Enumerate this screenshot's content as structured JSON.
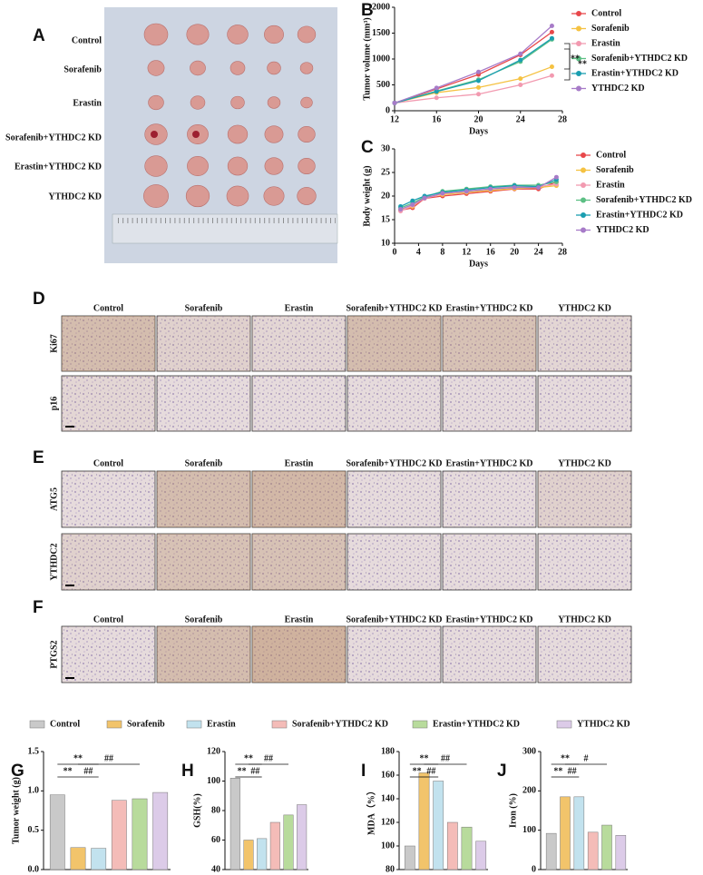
{
  "letters": [
    "A",
    "B",
    "C",
    "D",
    "E",
    "F",
    "G",
    "H",
    "I",
    "J"
  ],
  "photo_labels": [
    "Control",
    "Sorafenib",
    "Erastin",
    "Sorafenib+YTHDC2 KD",
    "Erastin+YTHDC2 KD",
    "YTHDC2 KD"
  ],
  "ihc": {
    "D": {
      "columns": [
        "Control",
        "Sorafenib",
        "Erastin",
        "Sorafenib+YTHDC2 KD",
        "Erastin+YTHDC2 KD",
        "YTHDC2 KD"
      ],
      "rows": [
        "Ki67",
        "p16"
      ]
    },
    "E": {
      "columns": [
        "Control",
        "Sorafenib",
        "Erastin",
        "Sorafenib+YTHDC2 KD",
        "Erastin+YTHDC2 KD",
        "YTHDC2 KD"
      ],
      "rows": [
        "ATG5",
        "YTHDC2"
      ]
    },
    "F": {
      "columns": [
        "Control",
        "Sorafenib",
        "Erastin",
        "Sorafenib+YTHDC2 KD",
        "Erastin+YTHDC2 KD",
        "YTHDC2 KD"
      ],
      "rows": [
        "PTGS2"
      ]
    }
  },
  "groups": [
    {
      "name": "Control",
      "color": "#c9c9c9"
    },
    {
      "name": "Sorafenib",
      "color": "#f2c46b"
    },
    {
      "name": "Erastin",
      "color": "#c2e2ee"
    },
    {
      "name": "Sorafenib+YTHDC2 KD",
      "color": "#f4bcb8"
    },
    {
      "name": "Erastin+YTHDC2 KD",
      "color": "#b8db9c"
    },
    {
      "name": "YTHDC2 KD",
      "color": "#dccbe8"
    }
  ],
  "chart_data": [
    {
      "type": "line",
      "xlabel": "Days",
      "ylabel": "Tumor volume (mm³)",
      "x": [
        12,
        16,
        20,
        24,
        27
      ],
      "xlim": [
        12,
        28
      ],
      "xticks": [
        12,
        16,
        20,
        24,
        28
      ],
      "ylim": [
        0,
        2000
      ],
      "yticks": [
        0,
        500,
        1000,
        1500,
        2000
      ],
      "annotations": [
        "**",
        "**"
      ],
      "series": [
        {
          "name": "Control",
          "color": "#e8474a",
          "values": [
            150,
            420,
            700,
            1080,
            1520
          ]
        },
        {
          "name": "Sorafenib",
          "color": "#f5c242",
          "values": [
            150,
            350,
            450,
            620,
            850
          ]
        },
        {
          "name": "Erastin",
          "color": "#f29ab0",
          "values": [
            150,
            250,
            320,
            500,
            680
          ]
        },
        {
          "name": "Sorafenib+YTHDC2 KD",
          "color": "#5cbf84",
          "values": [
            150,
            380,
            600,
            950,
            1380
          ]
        },
        {
          "name": "Erastin+YTHDC2 KD",
          "color": "#1a9eb0",
          "values": [
            150,
            370,
            580,
            980,
            1400
          ]
        },
        {
          "name": "YTHDC2 KD",
          "color": "#a77bc8",
          "values": [
            150,
            440,
            750,
            1100,
            1640
          ]
        }
      ]
    },
    {
      "type": "line",
      "xlabel": "Days",
      "ylabel": "Body weight (g)",
      "x": [
        1,
        3,
        5,
        8,
        12,
        16,
        20,
        24,
        27
      ],
      "xlim": [
        0,
        28
      ],
      "xticks": [
        0,
        4,
        8,
        12,
        16,
        20,
        24,
        28
      ],
      "ylim": [
        10,
        30
      ],
      "yticks": [
        10,
        15,
        20,
        25,
        30
      ],
      "series": [
        {
          "name": "Control",
          "color": "#e8474a",
          "values": [
            17,
            17.5,
            19.5,
            20,
            20.5,
            21,
            21.5,
            21.5,
            23
          ]
        },
        {
          "name": "Sorafenib",
          "color": "#f5c242",
          "values": [
            17,
            17.8,
            19.8,
            20.3,
            20.8,
            21.2,
            21.6,
            21.8,
            22.2
          ]
        },
        {
          "name": "Erastin",
          "color": "#f29ab0",
          "values": [
            16.8,
            18,
            19.5,
            20.5,
            21,
            21.5,
            22,
            22,
            22.5
          ]
        },
        {
          "name": "Sorafenib+YTHDC2 KD",
          "color": "#5cbf84",
          "values": [
            17.5,
            18.5,
            19.8,
            21,
            21.5,
            22,
            22.3,
            22.3,
            23
          ]
        },
        {
          "name": "Erastin+YTHDC2 KD",
          "color": "#1a9eb0",
          "values": [
            17.8,
            19,
            20,
            20.8,
            21.3,
            21.8,
            22.2,
            22,
            23.5
          ]
        },
        {
          "name": "YTHDC2 KD",
          "color": "#a77bc8",
          "values": [
            17.2,
            18.2,
            19.6,
            20.6,
            21,
            21.5,
            21.8,
            21.8,
            24
          ]
        }
      ]
    },
    {
      "type": "bar",
      "ylabel": "Tumor weight (g)",
      "values": [
        0.95,
        0.28,
        0.27,
        0.88,
        0.9,
        0.98
      ],
      "ylim": [
        0,
        1.5
      ],
      "yticks": [
        {
          "value": 0,
          "label": "0.0"
        },
        0.5,
        {
          "value": 1,
          "label": "1.0"
        },
        1.5
      ],
      "annotations": [
        "**",
        "**",
        "##",
        "##"
      ]
    },
    {
      "type": "bar",
      "ylabel": "GSH(%)",
      "values": [
        102,
        60,
        61,
        72,
        77,
        84
      ],
      "ylim": [
        40,
        120
      ],
      "yticks": [
        40,
        60,
        80,
        100,
        120
      ],
      "annotations": [
        "**",
        "**",
        "##",
        "##"
      ]
    },
    {
      "type": "bar",
      "ylabel": "MDA（%）",
      "values": [
        100,
        162,
        155,
        120,
        116,
        104
      ],
      "ylim": [
        80,
        180
      ],
      "yticks": [
        80,
        100,
        120,
        140,
        160,
        180
      ],
      "annotations": [
        "**",
        "**",
        "##",
        "##"
      ]
    },
    {
      "type": "bar",
      "ylabel": "Iron (%)",
      "values": [
        92,
        185,
        185,
        95,
        113,
        87
      ],
      "ylim": [
        0,
        300
      ],
      "yticks": [
        0,
        100,
        200,
        300
      ],
      "annotations": [
        "**",
        "**",
        "##",
        "#"
      ]
    }
  ]
}
